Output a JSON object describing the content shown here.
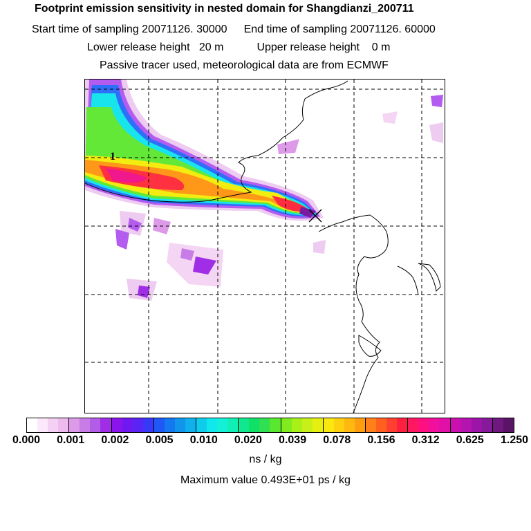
{
  "header": {
    "title": "Footprint emission sensitivity in nested domain for Shangdianzi_200711",
    "start_label": "Start time of sampling 20071126. 30000",
    "end_label": "End time of sampling 20071126. 60000",
    "lower_label": "Lower release height   20 m",
    "upper_label": "Upper release height    0 m",
    "note": "Passive tracer used, meteorological data are from ECMWF"
  },
  "map": {
    "contour_label": "1",
    "receptor_marker": "x-marker"
  },
  "legend": {
    "ticks": [
      "0.000",
      "0.001",
      "0.002",
      "0.005",
      "0.010",
      "0.020",
      "0.039",
      "0.078",
      "0.156",
      "0.312",
      "0.625",
      "1.250"
    ],
    "units": "ns / kg",
    "max_value": "Maximum value  0.493E+01 ps / kg",
    "colors": [
      "#ffffff",
      "#fbe8fb",
      "#f4d0f4",
      "#eebbee",
      "#dc9ae8",
      "#c87de6",
      "#b35ce8",
      "#9f2ee6",
      "#8a14ec",
      "#6f18f0",
      "#5a24f4",
      "#3838f8",
      "#2058f8",
      "#1478f0",
      "#1094ec",
      "#10b0ec",
      "#10ccec",
      "#10e8ec",
      "#14f0d8",
      "#10f0b4",
      "#10e890",
      "#10e068",
      "#30e050",
      "#58e830",
      "#80ec20",
      "#a8f018",
      "#c8f018",
      "#e6f010",
      "#f8e810",
      "#ffd010",
      "#ffb810",
      "#ff9c10",
      "#ff8018",
      "#ff6020",
      "#ff4030",
      "#ff2040",
      "#ff1860",
      "#ff1080",
      "#f0109c",
      "#e010a8",
      "#cc10b0",
      "#b414b0",
      "#9c14a8",
      "#861a98",
      "#6e1880",
      "#5a1466"
    ]
  }
}
